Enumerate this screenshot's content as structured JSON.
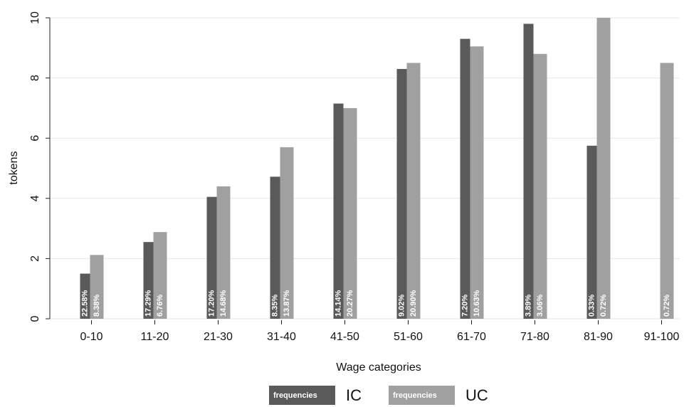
{
  "chart_data": {
    "type": "bar",
    "x_label": "Wage categories",
    "y_label": "tokens",
    "categories": [
      "0-10",
      "11-20",
      "21-30",
      "31-40",
      "41-50",
      "51-60",
      "61-70",
      "71-80",
      "81-90",
      "91-100"
    ],
    "series": [
      {
        "name": "IC",
        "color": "#5a5a5a",
        "values": [
          1.5,
          2.55,
          4.05,
          4.72,
          7.15,
          8.3,
          9.3,
          9.8,
          5.75,
          null
        ],
        "labels": [
          "22.58%",
          "17.29%",
          "17.20%",
          "8.35%",
          "14.14%",
          "9.02%",
          "7.20%",
          "3.89%",
          "0.33%",
          null
        ]
      },
      {
        "name": "UC",
        "color": "#a0a0a0",
        "values": [
          2.12,
          2.88,
          4.4,
          5.7,
          7.0,
          8.5,
          9.05,
          8.8,
          10.0,
          8.5
        ],
        "labels": [
          "8.38%",
          "6.76%",
          "14.68%",
          "13.87%",
          "20.27%",
          "20.90%",
          "10.63%",
          "3.06%",
          "0.72%",
          "0.72%"
        ]
      }
    ],
    "legend_key_label": "frequencies",
    "ylim": [
      0,
      10
    ],
    "yticks": [
      0,
      2,
      4,
      6,
      8,
      10
    ],
    "grid": true
  }
}
